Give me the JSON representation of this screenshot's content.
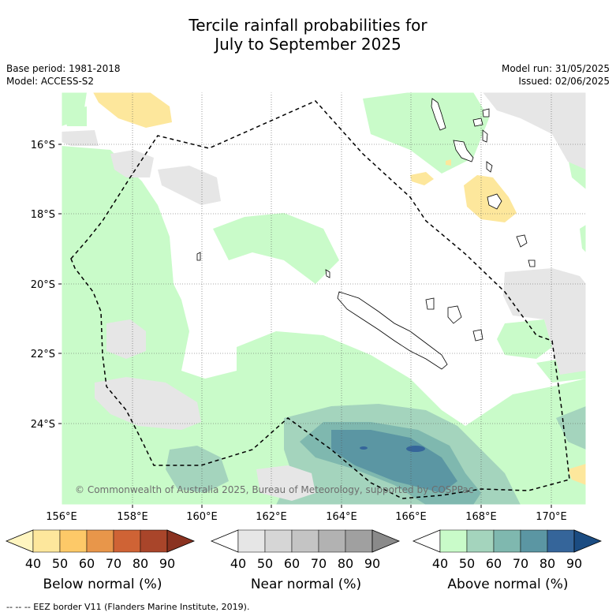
{
  "title": {
    "line1": "Tercile rainfall probabilities for",
    "line2": "July to September 2025"
  },
  "meta": {
    "base_period": "Base period: 1981-2018",
    "model": "Model: ACCESS-S2",
    "model_run": "Model run: 31/05/2025",
    "issued": "Issued: 02/06/2025"
  },
  "map": {
    "lat_labels": [
      "16°S",
      "18°S",
      "20°S",
      "22°S",
      "24°S"
    ],
    "lon_labels": [
      "156°E",
      "158°E",
      "160°E",
      "162°E",
      "164°E",
      "166°E",
      "168°E",
      "170°E"
    ],
    "copyright": "© Commonwealth of Australia 2025, Bureau of Meteorology, supported by COSPPac"
  },
  "legend": {
    "below": {
      "title": "Below normal (%)",
      "ticks": [
        "40",
        "50",
        "60",
        "70",
        "80",
        "90"
      ],
      "colors": [
        "#fff5c0",
        "#fde79c",
        "#fdc968",
        "#e8964a",
        "#cf6335",
        "#a9452a",
        "#8a3220"
      ]
    },
    "near": {
      "title": "Near normal (%)",
      "ticks": [
        "40",
        "50",
        "60",
        "70",
        "80",
        "90"
      ],
      "colors": [
        "#ffffff",
        "#e6e6e6",
        "#d6d6d6",
        "#c4c4c4",
        "#b2b2b2",
        "#a0a0a0",
        "#8a8a8a"
      ]
    },
    "above": {
      "title": "Above normal (%)",
      "ticks": [
        "40",
        "50",
        "60",
        "70",
        "80",
        "90"
      ],
      "colors": [
        "#ffffff",
        "#c9fbc9",
        "#a4d4bd",
        "#7fb8af",
        "#5b96a3",
        "#35659a",
        "#1b4c82"
      ]
    }
  },
  "footer": "--  --  -- EEZ border V11 (Flanders Marine Institute, 2019)."
}
